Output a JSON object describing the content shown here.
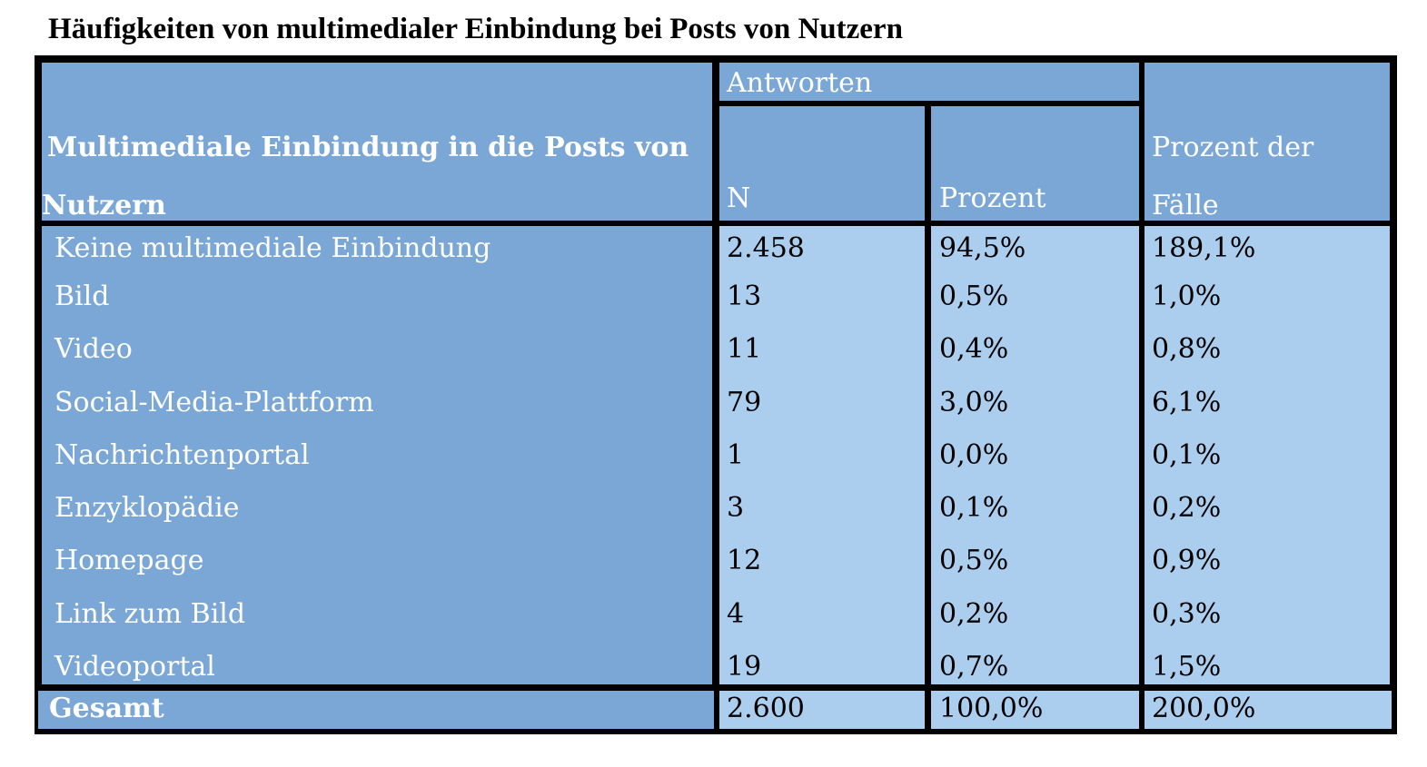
{
  "title": "Häufigkeiten von multimedialer Einbindung bei Posts von Nutzern",
  "chart_data": {
    "type": "table",
    "header": {
      "row_label_line1": "Multimediale Einbindung in die Posts von",
      "row_label_line2": "Nutzern",
      "group": "Antworten",
      "col_n": "N",
      "col_prozent": "Prozent",
      "col_faelle_line1": "Prozent der",
      "col_faelle_line2": "Fälle"
    },
    "rows": [
      {
        "label": "Keine multimediale Einbindung",
        "n": "2.458",
        "prozent": "94,5%",
        "faelle": "189,1%"
      },
      {
        "label": "Bild",
        "n": "13",
        "prozent": "0,5%",
        "faelle": "1,0%"
      },
      {
        "label": "Video",
        "n": "11",
        "prozent": "0,4%",
        "faelle": "0,8%"
      },
      {
        "label": "Social-Media-Plattform",
        "n": "79",
        "prozent": "3,0%",
        "faelle": "6,1%"
      },
      {
        "label": "Nachrichtenportal",
        "n": "1",
        "prozent": "0,0%",
        "faelle": "0,1%"
      },
      {
        "label": "Enzyklopädie",
        "n": "3",
        "prozent": "0,1%",
        "faelle": "0,2%"
      },
      {
        "label": "Homepage",
        "n": "12",
        "prozent": "0,5%",
        "faelle": "0,9%"
      },
      {
        "label": "Link zum Bild",
        "n": "4",
        "prozent": "0,2%",
        "faelle": "0,3%"
      },
      {
        "label": "Videoportal",
        "n": "19",
        "prozent": "0,7%",
        "faelle": "1,5%"
      }
    ],
    "total": {
      "label": "Gesamt",
      "n": "2.600",
      "prozent": "100,0%",
      "faelle": "200,0%"
    }
  },
  "colors": {
    "header_bg": "#7ba7d6",
    "body_bg": "#abcdee",
    "border": "#000000"
  }
}
